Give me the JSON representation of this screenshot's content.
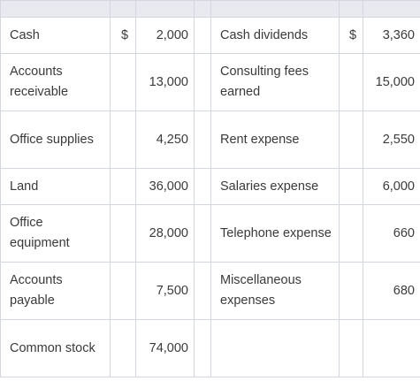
{
  "rows": [
    {
      "left_label": "Cash",
      "left_cur": "$",
      "left_amt": "2,000",
      "right_label": "Cash dividends",
      "right_cur": "$",
      "right_amt": "3,360"
    },
    {
      "left_label": "Accounts receivable",
      "left_cur": "",
      "left_amt": "13,000",
      "right_label": "Consulting fees earned",
      "right_cur": "",
      "right_amt": "15,000"
    },
    {
      "left_label": "Office supplies",
      "left_cur": "",
      "left_amt": "4,250",
      "right_label": "Rent expense",
      "right_cur": "",
      "right_amt": "2,550"
    },
    {
      "left_label": "Land",
      "left_cur": "",
      "left_amt": "36,000",
      "right_label": "Salaries expense",
      "right_cur": "",
      "right_amt": "6,000"
    },
    {
      "left_label": "Office equipment",
      "left_cur": "",
      "left_amt": "28,000",
      "right_label": "Telephone expense",
      "right_cur": "",
      "right_amt": "660"
    },
    {
      "left_label": "Accounts payable",
      "left_cur": "",
      "left_amt": "7,500",
      "right_label": "Miscellaneous expenses",
      "right_cur": "",
      "right_amt": "680"
    },
    {
      "left_label": "Common stock",
      "left_cur": "",
      "left_amt": "74,000",
      "right_label": "",
      "right_cur": "",
      "right_amt": ""
    }
  ],
  "colors": {
    "header_bg": "#e8eaf0",
    "border": "#d4d7dd",
    "text": "#3a3a3a"
  }
}
